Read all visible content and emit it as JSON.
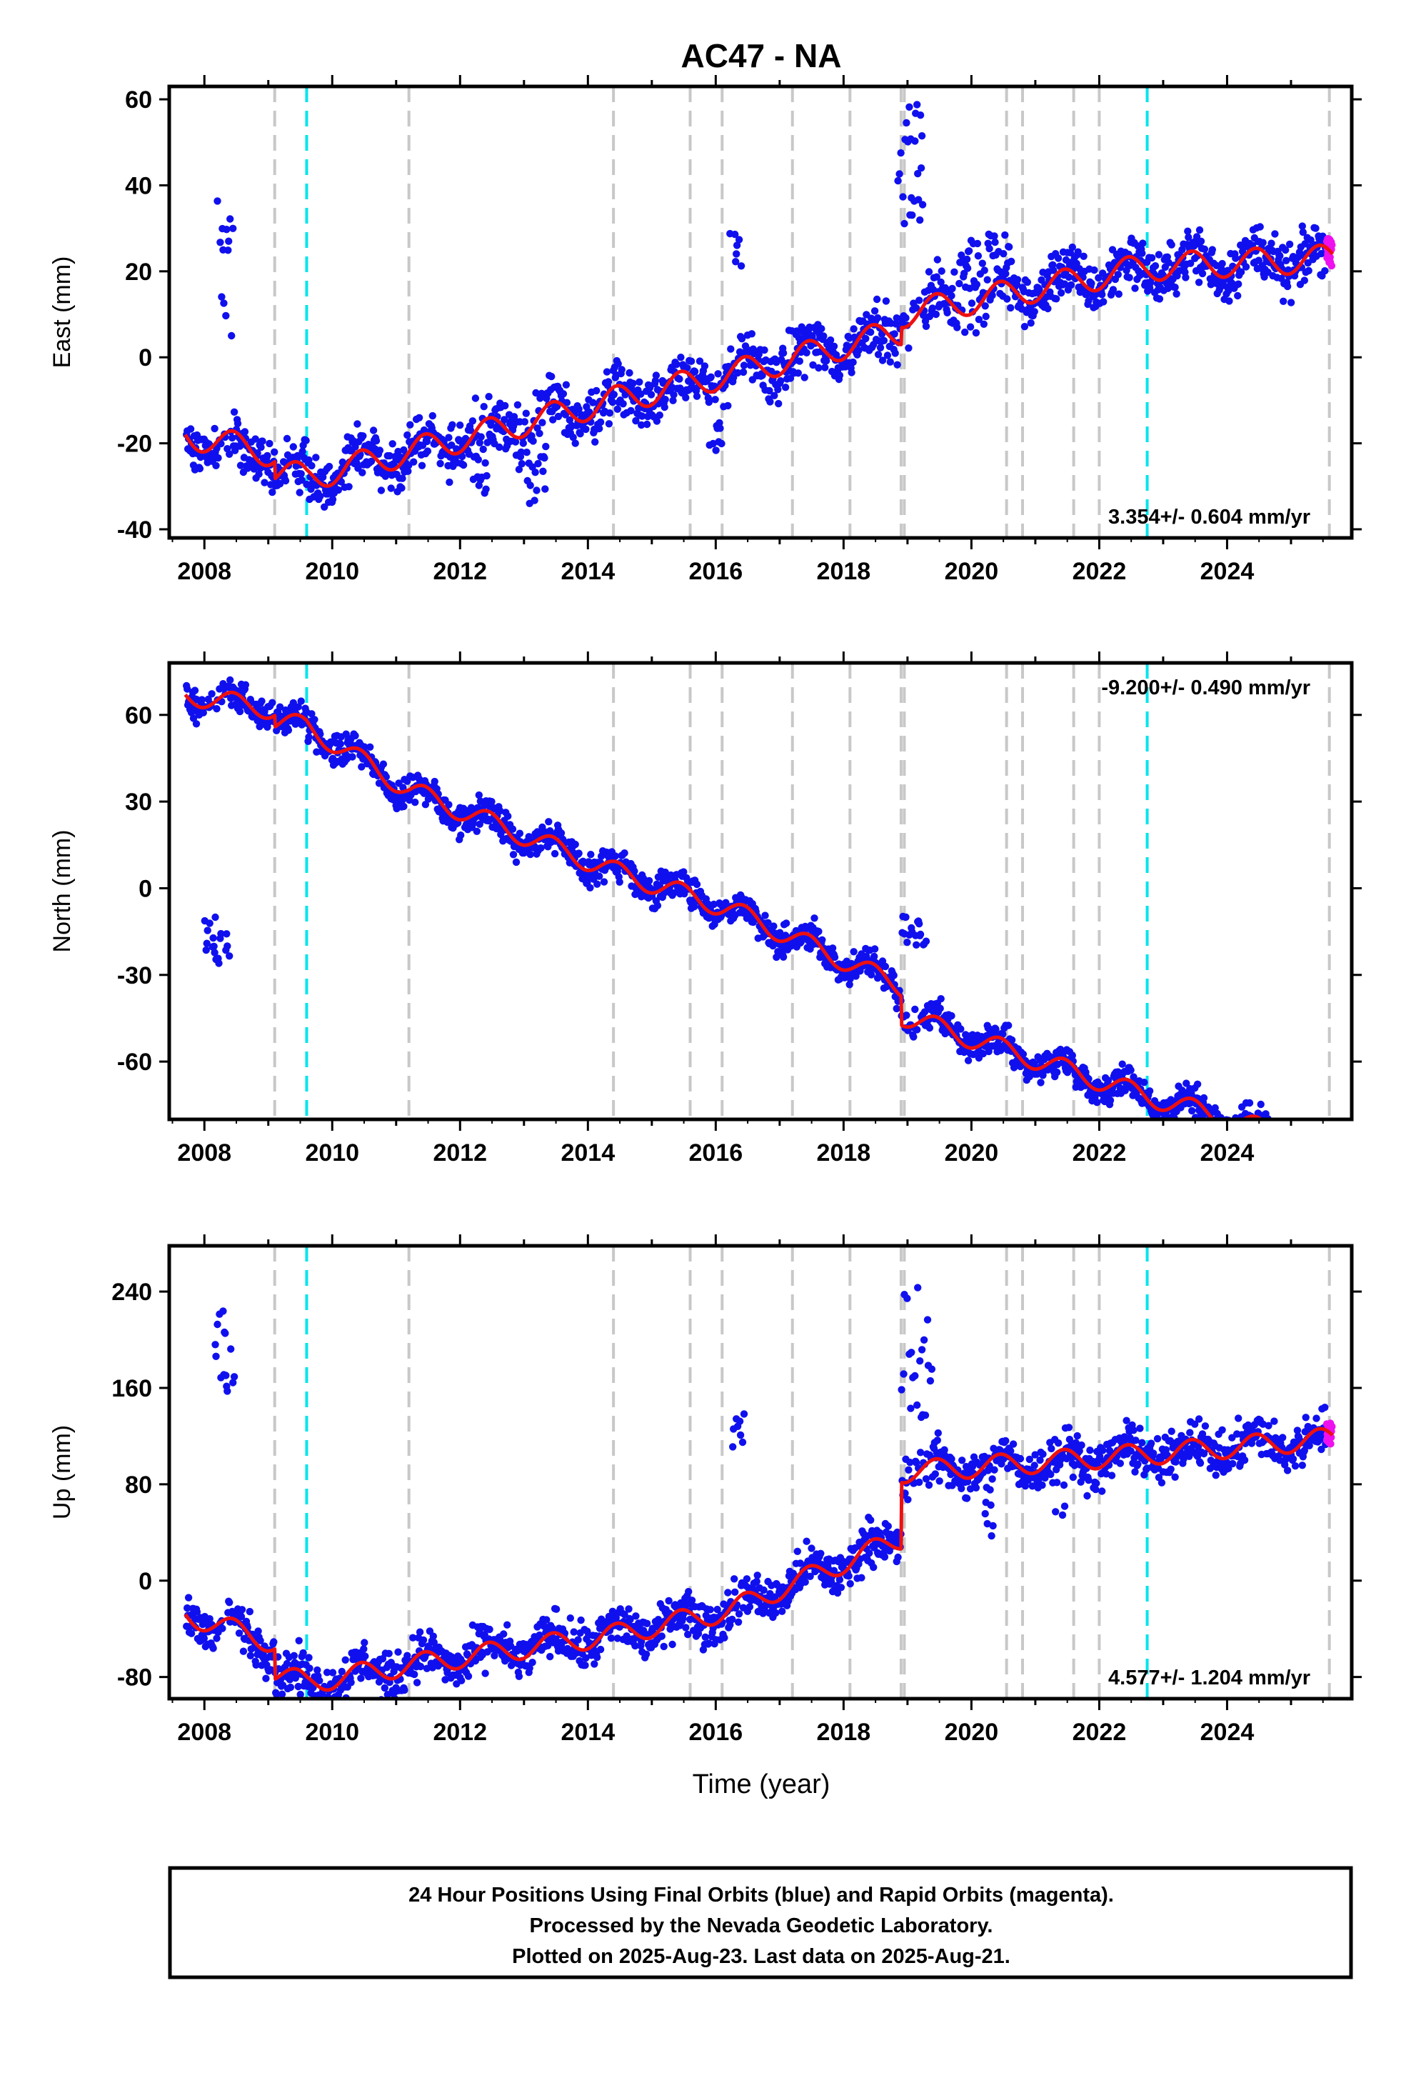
{
  "title": "AC47 - NA",
  "xlabel": "Time (year)",
  "x_ticks": [
    "2008",
    "2010",
    "2012",
    "2014",
    "2016",
    "2018",
    "2020",
    "2022",
    "2024"
  ],
  "caption": {
    "line1": "24 Hour Positions Using Final Orbits (blue) and Rapid Orbits (magenta).",
    "line2": "Processed by the Nevada Geodetic Laboratory.",
    "line3": "Plotted on 2025-Aug-23. Last data on 2025-Aug-21."
  },
  "colors": {
    "final_orbits": "#1010ee",
    "rapid_orbits": "#ee10ee",
    "model": "#ee1010",
    "gray_event": "#c8c8c8",
    "cyan_event": "#00e5ee"
  },
  "chart_data": [
    {
      "type": "scatter",
      "component": "East",
      "ylabel": "East (mm)",
      "xlim": [
        2007.45,
        2025.95
      ],
      "ylim": [
        -42,
        63
      ],
      "yticks": [
        "60",
        "40",
        "20",
        "0",
        "-20",
        "-40"
      ],
      "ytick_values": [
        60,
        40,
        20,
        0,
        -20,
        -40
      ],
      "rate_label": "3.354+/- 0.604 mm/yr",
      "rate_position": "bottom-right",
      "gray_events": [
        2009.1,
        2011.2,
        2014.4,
        2015.6,
        2016.1,
        2017.2,
        2018.1,
        2018.9,
        2018.95,
        2020.55,
        2020.8,
        2021.6,
        2022.0,
        2025.6
      ],
      "cyan_events": [
        2009.6,
        2022.75
      ],
      "seasonal_amp": 3.2,
      "scatter_noise": 3.0,
      "offsets": [
        [
          2009.1,
          -4
        ],
        [
          2018.9,
          4
        ]
      ],
      "trend_knots": [
        [
          2007.7,
          -18
        ],
        [
          2009.6,
          -24
        ],
        [
          2011.2,
          -18
        ],
        [
          2014.4,
          -6
        ],
        [
          2016.2,
          0
        ],
        [
          2018.9,
          10
        ],
        [
          2022.75,
          21
        ],
        [
          2025.65,
          23
        ]
      ],
      "excursions": [
        [
          2008.2,
          2008.45,
          20,
          18
        ],
        [
          2009.85,
          2010.15,
          -30,
          6
        ],
        [
          2012.2,
          2012.45,
          -28,
          6
        ],
        [
          2013.05,
          2013.35,
          -26,
          8
        ],
        [
          2015.9,
          2016.1,
          -18,
          4
        ],
        [
          2016.2,
          2016.4,
          25,
          4
        ],
        [
          2018.85,
          2019.25,
          45,
          14
        ],
        [
          2019.8,
          2020.2,
          22,
          6
        ],
        [
          2020.25,
          2020.6,
          25,
          5
        ]
      ]
    },
    {
      "type": "scatter",
      "component": "North",
      "ylabel": "North (mm)",
      "xlim": [
        2007.45,
        2025.95
      ],
      "ylim": [
        -80,
        78
      ],
      "yticks": [
        "60",
        "30",
        "0",
        "-30",
        "-60"
      ],
      "ytick_values": [
        60,
        30,
        0,
        -30,
        -60
      ],
      "rate_label": "-9.200+/- 0.490 mm/yr",
      "rate_position": "top-right",
      "gray_events": [
        2009.1,
        2011.2,
        2014.4,
        2015.6,
        2016.1,
        2017.2,
        2018.1,
        2018.9,
        2018.95,
        2020.55,
        2020.8,
        2021.6,
        2022.0,
        2025.6
      ],
      "cyan_events": [
        2009.6,
        2022.75
      ],
      "seasonal_amp": 3.5,
      "scatter_noise": 2.6,
      "offsets": [
        [
          2009.1,
          -4
        ],
        [
          2018.9,
          -10
        ]
      ],
      "trend_knots": [
        [
          2007.7,
          67
        ],
        [
          2009.6,
          60
        ],
        [
          2011.2,
          38
        ],
        [
          2014.4,
          10
        ],
        [
          2016.2,
          -3
        ],
        [
          2018.9,
          -30
        ],
        [
          2022.75,
          -58
        ],
        [
          2025.65,
          -76
        ]
      ],
      "excursions": [
        [
          2008.0,
          2008.4,
          -18,
          8
        ],
        [
          2018.9,
          2019.3,
          -15,
          6
        ]
      ]
    },
    {
      "type": "scatter",
      "component": "Up",
      "ylabel": "Up (mm)",
      "xlim": [
        2007.45,
        2025.95
      ],
      "ylim": [
        -98,
        278
      ],
      "yticks": [
        "240",
        "160",
        "80",
        "0",
        "-80"
      ],
      "ytick_values": [
        240,
        160,
        80,
        0,
        -80
      ],
      "rate_label": "4.577+/- 1.204 mm/yr",
      "rate_position": "bottom-right",
      "gray_events": [
        2009.1,
        2011.2,
        2014.4,
        2015.6,
        2016.1,
        2017.2,
        2018.1,
        2018.9,
        2018.95,
        2020.55,
        2020.8,
        2021.6,
        2022.0,
        2025.6
      ],
      "cyan_events": [
        2009.6,
        2022.75
      ],
      "seasonal_amp": 9,
      "scatter_noise": 9,
      "offsets": [
        [
          2009.1,
          -25
        ],
        [
          2018.9,
          55
        ]
      ],
      "trend_knots": [
        [
          2007.7,
          -28
        ],
        [
          2009.6,
          -60
        ],
        [
          2011.2,
          -45
        ],
        [
          2014.4,
          -20
        ],
        [
          2016.2,
          0
        ],
        [
          2018.9,
          60
        ],
        [
          2022.75,
          75
        ],
        [
          2025.65,
          88
        ]
      ],
      "excursions": [
        [
          2008.15,
          2008.5,
          190,
          40
        ],
        [
          2016.25,
          2016.45,
          130,
          20
        ],
        [
          2018.9,
          2019.4,
          190,
          55
        ],
        [
          2020.2,
          2020.35,
          60,
          25
        ],
        [
          2021.3,
          2021.5,
          90,
          40
        ]
      ]
    }
  ]
}
